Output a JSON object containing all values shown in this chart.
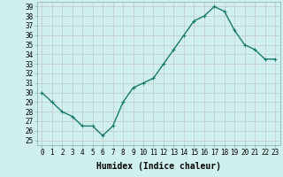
{
  "x": [
    0,
    1,
    2,
    3,
    4,
    5,
    6,
    7,
    8,
    9,
    10,
    11,
    12,
    13,
    14,
    15,
    16,
    17,
    18,
    19,
    20,
    21,
    22,
    23
  ],
  "y": [
    30,
    29,
    28,
    27.5,
    26.5,
    26.5,
    25.5,
    26.5,
    29,
    30.5,
    31,
    31.5,
    33,
    34.5,
    36,
    37.5,
    38,
    39,
    38.5,
    36.5,
    35,
    34.5,
    33.5,
    33.5
  ],
  "line_color": "#1a7a6e",
  "marker": "+",
  "marker_size": 3,
  "marker_linewidth": 0.8,
  "bg_color": "#cff0ee",
  "grid_color": "#c0c8c8",
  "spine_color": "#8aabab",
  "ylim": [
    24.5,
    39.5
  ],
  "xlim": [
    -0.5,
    23.5
  ],
  "yticks": [
    25,
    26,
    27,
    28,
    29,
    30,
    31,
    32,
    33,
    34,
    35,
    36,
    37,
    38,
    39
  ],
  "xticks": [
    0,
    1,
    2,
    3,
    4,
    5,
    6,
    7,
    8,
    9,
    10,
    11,
    12,
    13,
    14,
    15,
    16,
    17,
    18,
    19,
    20,
    21,
    22,
    23
  ],
  "xlabel": "Humidex (Indice chaleur)",
  "xlabel_fontsize": 7,
  "tick_fontsize": 5.5,
  "line_width": 1.0,
  "title": ""
}
